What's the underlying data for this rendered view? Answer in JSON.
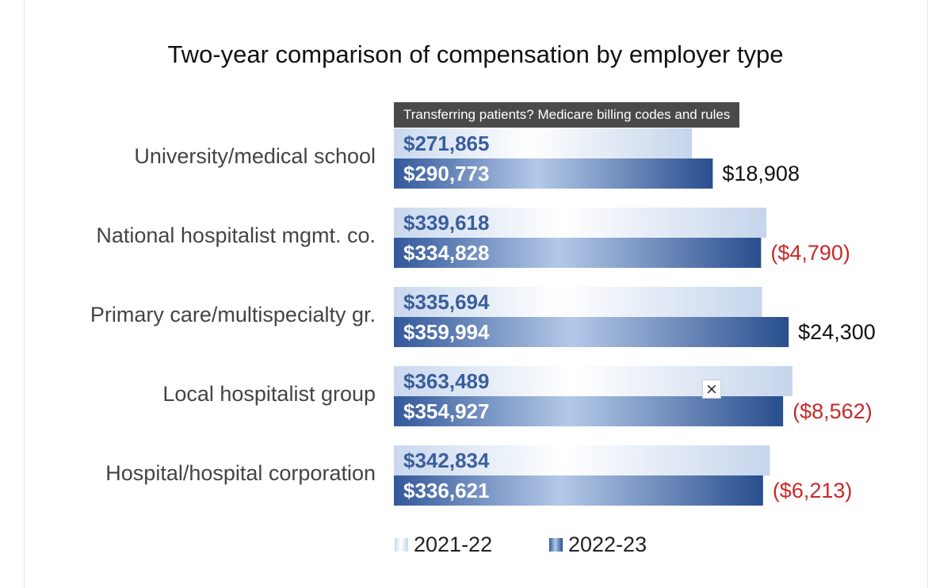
{
  "chart_data": {
    "type": "bar",
    "orientation": "horizontal",
    "title": "Two-year comparison of compensation by employer type",
    "categories": [
      "University/medical school",
      "National hospitalist mgmt. co.",
      "Primary care/multispecialty gr.",
      "Local hospitalist group",
      "Hospital/hospital corporation"
    ],
    "series": [
      {
        "name": "2021-22",
        "values": [
          271865,
          339618,
          335694,
          363489,
          342834
        ],
        "labels": [
          "$271,865",
          "$339,618",
          "$335,694",
          "$363,489",
          "$342,834"
        ],
        "color": "#dce6f4"
      },
      {
        "name": "2022-23",
        "values": [
          290773,
          334828,
          359994,
          354927,
          336621
        ],
        "labels": [
          "$290,773",
          "$334,828",
          "$359,994",
          "$354,927",
          "$336,621"
        ],
        "color": "#3e68a6"
      }
    ],
    "differences": [
      {
        "value": 18908,
        "label": "$18,908",
        "color": "#111111"
      },
      {
        "value": -4790,
        "label": "($4,790)",
        "color": "#c62a2a"
      },
      {
        "value": 24300,
        "label": "$24,300",
        "color": "#111111"
      },
      {
        "value": -8562,
        "label": "($8,562)",
        "color": "#c62a2a"
      },
      {
        "value": -6213,
        "label": "($6,213)",
        "color": "#c62a2a"
      }
    ],
    "xlim": [
      0,
      365000
    ],
    "grid": false,
    "legend": "bottom"
  },
  "tooltip": {
    "text": "Transferring patients? Medicare billing codes and rules"
  },
  "close_button": {
    "label": "×"
  }
}
